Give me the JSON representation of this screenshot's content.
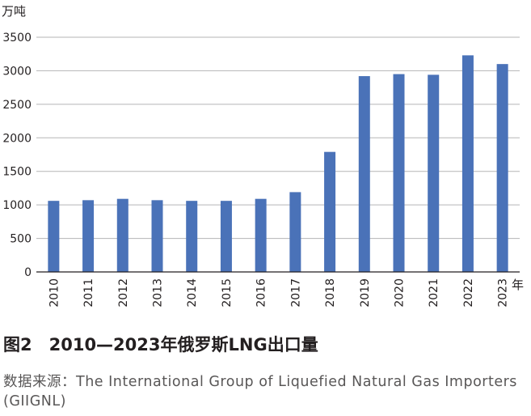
{
  "chart_data": {
    "type": "bar",
    "title": "图2 2010—2023年俄罗斯LNG出口量",
    "ylabel": "万吨",
    "xlabel": "年",
    "ylim": [
      0,
      3500
    ],
    "yticks": [
      0,
      500,
      1000,
      1500,
      2000,
      2500,
      3000,
      3500
    ],
    "grid": true,
    "bar_color": "#4a72b8",
    "categories": [
      "2010",
      "2011",
      "2012",
      "2013",
      "2014",
      "2015",
      "2016",
      "2017",
      "2018",
      "2019",
      "2020",
      "2021",
      "2022",
      "2023"
    ],
    "values": [
      1060,
      1070,
      1090,
      1070,
      1060,
      1060,
      1090,
      1190,
      1790,
      2920,
      2950,
      2940,
      3230,
      3100
    ]
  },
  "figure": {
    "title": "图2　2010—2023年俄罗斯LNG出口量",
    "source": "数据来源：The International Group of Liquefied Natural Gas Importers (GIIGNL)"
  }
}
